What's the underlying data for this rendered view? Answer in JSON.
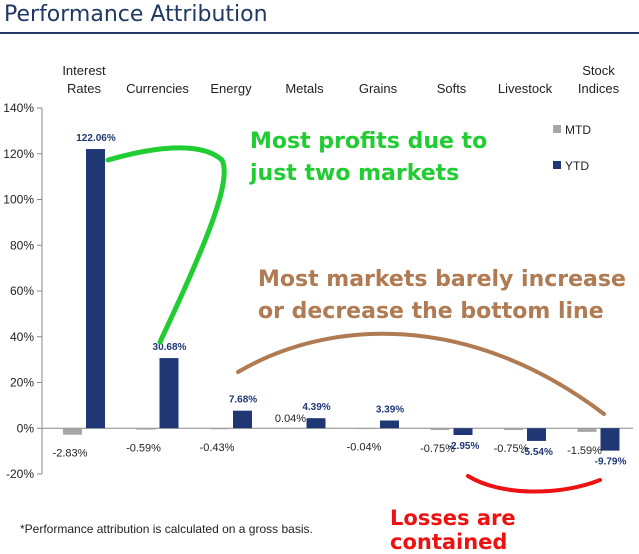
{
  "title": "Performance Attribution",
  "footnote": "*Performance attribution is calculated on a gross basis.",
  "annotations": {
    "profits": [
      "Most profits due to",
      "just two markets"
    ],
    "markets": [
      "Most markets barely increase",
      "or decrease the bottom line"
    ],
    "losses": "Losses are contained"
  },
  "colors": {
    "title": "#1f3864",
    "ytd": "#1f3874",
    "mtd": "#a6a6a6",
    "green": "#22cc33",
    "brown": "#b07a52",
    "red": "#ee1111"
  },
  "chart_data": {
    "type": "bar",
    "title": "Performance Attribution",
    "categories": [
      [
        "Interest",
        "Rates"
      ],
      [
        "Currencies"
      ],
      [
        "Energy"
      ],
      [
        "Metals"
      ],
      [
        "Grains"
      ],
      [
        "Softs"
      ],
      [
        "Livestock"
      ],
      [
        "Stock",
        "Indices"
      ]
    ],
    "series": [
      {
        "name": "MTD",
        "values": [
          -2.83,
          -0.59,
          -0.43,
          0.04,
          -0.04,
          -0.75,
          -0.75,
          -1.59
        ],
        "labels": [
          "-2.83%",
          "-0.59%",
          "-0.43%",
          "0.04%",
          "-0.04%",
          "-0.75%",
          "-0.75%",
          "-1.59%"
        ]
      },
      {
        "name": "YTD",
        "values": [
          122.06,
          30.68,
          7.68,
          4.39,
          3.39,
          -2.95,
          -5.54,
          -9.79
        ],
        "labels": [
          "122.06%",
          "30.68%",
          "7.68%",
          "4.39%",
          "3.39%",
          "-2.95%",
          "-5.54%",
          "-9.79%"
        ]
      }
    ],
    "ylim": [
      -20,
      140
    ],
    "yticks": [
      -20,
      0,
      20,
      40,
      60,
      80,
      100,
      120,
      140
    ],
    "ytick_labels": [
      "-20%",
      "0%",
      "20%",
      "40%",
      "60%",
      "80%",
      "100%",
      "120%",
      "140%"
    ],
    "legend": "right",
    "xlabel": "",
    "ylabel": ""
  }
}
